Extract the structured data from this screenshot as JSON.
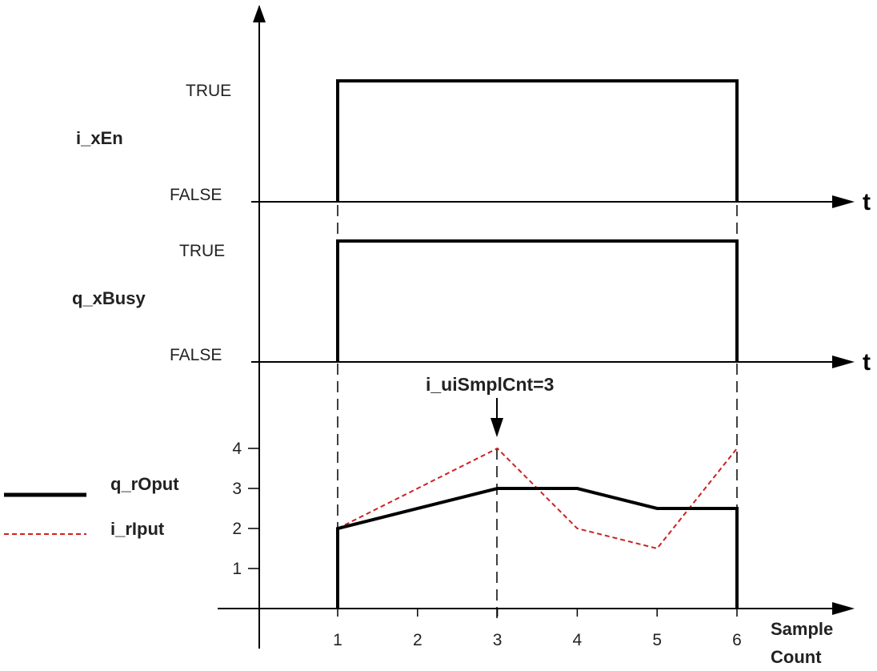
{
  "signals": {
    "en": {
      "name": "i_xEn",
      "true_label": "TRUE",
      "false_label": "FALSE",
      "time_label": "t"
    },
    "busy": {
      "name": "q_xBusy",
      "true_label": "TRUE",
      "false_label": "FALSE",
      "time_label": "t"
    }
  },
  "chart_data": {
    "type": "line",
    "x": [
      1,
      2,
      3,
      4,
      5,
      6
    ],
    "x_tick_labels": [
      "1",
      "2",
      "3",
      "4",
      "5",
      "6"
    ],
    "y_tick_labels": [
      "1",
      "2",
      "3",
      "4"
    ],
    "xlabel_line1": "Sample",
    "xlabel_line2": "Count",
    "series": [
      {
        "name": "q_rOput",
        "x": [
          1,
          3,
          4,
          5,
          6
        ],
        "values": [
          2,
          3,
          3,
          2.5,
          2.5
        ],
        "color": "#000000",
        "style": "solid"
      },
      {
        "name": "i_rIput",
        "x": [
          1,
          3,
          4,
          5,
          6
        ],
        "values": [
          2,
          4,
          2,
          1.5,
          4
        ],
        "color": "#cc2222",
        "style": "dashed"
      }
    ],
    "annotation": {
      "text": "i_uiSmplCnt=3",
      "x": 3
    }
  }
}
